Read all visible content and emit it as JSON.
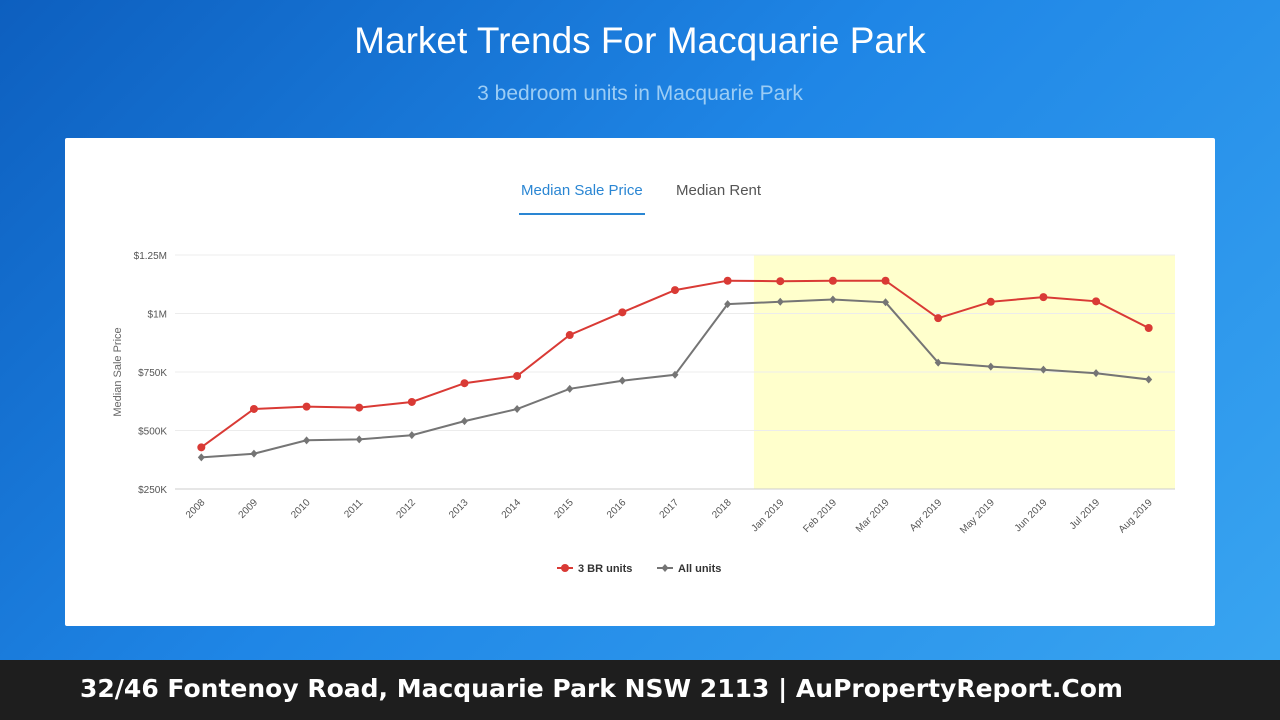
{
  "header": {
    "title": "Market Trends For Macquarie Park",
    "subtitle": "3 bedroom units in Macquarie Park"
  },
  "tabs": [
    {
      "label": "Median Sale Price",
      "active": true
    },
    {
      "label": "Median Rent",
      "active": false
    }
  ],
  "footer": {
    "text": "32/46 Fontenoy Road, Macquarie Park NSW 2113 | AuPropertyReport.Com"
  },
  "chart_data": {
    "type": "line",
    "ylabel": "Median Sale Price",
    "ylim": [
      250000,
      1250000
    ],
    "y_ticks": [
      {
        "value": 250000,
        "label": "$250K"
      },
      {
        "value": 500000,
        "label": "$500K"
      },
      {
        "value": 750000,
        "label": "$750K"
      },
      {
        "value": 1000000,
        "label": "$1M"
      },
      {
        "value": 1250000,
        "label": "$1.25M"
      }
    ],
    "categories": [
      "2008",
      "2009",
      "2010",
      "2011",
      "2012",
      "2013",
      "2014",
      "2015",
      "2016",
      "2017",
      "2018",
      "Jan 2019",
      "Feb 2019",
      "Mar 2019",
      "Apr 2019",
      "May 2019",
      "Jun 2019",
      "Jul 2019",
      "Aug 2019"
    ],
    "highlight_range": [
      "Jan 2019",
      "Aug 2019"
    ],
    "highlight_color": "#ffffcc",
    "grid": true,
    "legend_position": "bottom-center",
    "series": [
      {
        "name": "3 BR units",
        "color": "#d93a35",
        "marker": "circle",
        "values": [
          428000,
          592000,
          602000,
          598000,
          622000,
          702000,
          733000,
          908000,
          1005000,
          1100000,
          1140000,
          1138000,
          1140000,
          1140000,
          980000,
          1050000,
          1070000,
          1052000,
          938000
        ]
      },
      {
        "name": "All units",
        "color": "#757575",
        "marker": "diamond",
        "values": [
          385000,
          401000,
          458000,
          462000,
          480000,
          540000,
          592000,
          678000,
          713000,
          738000,
          1040000,
          1050000,
          1060000,
          1048000,
          790000,
          773000,
          760000,
          745000,
          718000
        ]
      }
    ]
  }
}
